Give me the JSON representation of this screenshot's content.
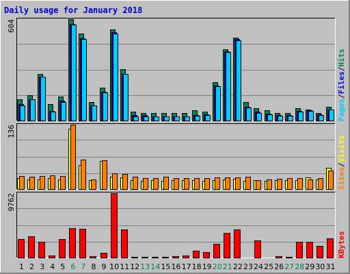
{
  "chart_data": {
    "type": "bar",
    "title": "Daily usage for January 2018",
    "categories": [
      "1",
      "2",
      "3",
      "4",
      "5",
      "6",
      "7",
      "8",
      "9",
      "10",
      "11",
      "12",
      "13",
      "14",
      "15",
      "16",
      "17",
      "18",
      "19",
      "20",
      "21",
      "22",
      "23",
      "24",
      "25",
      "26",
      "27",
      "28",
      "29",
      "30",
      "31"
    ],
    "weekend_days": [
      "6",
      "7",
      "13",
      "14",
      "20",
      "21",
      "27",
      "28"
    ],
    "panels": [
      {
        "id": "hits-files-pages",
        "max_label": "604",
        "ymax": 604,
        "legend": [
          {
            "name": "Pages",
            "color": "#00ccff"
          },
          {
            "name": "/",
            "color": "#000000"
          },
          {
            "name": "Files",
            "color": "#0000ff"
          },
          {
            "name": "/",
            "color": "#000000"
          },
          {
            "name": "Hits",
            "color": "#00805c"
          }
        ],
        "series": [
          {
            "name": "Hits",
            "color": "#00805c",
            "values": [
              130,
              155,
              280,
              100,
              145,
              604,
              520,
              115,
              200,
              545,
              310,
              55,
              50,
              48,
              50,
              48,
              48,
              65,
              55,
              230,
              425,
              495,
              115,
              78,
              65,
              48,
              48,
              78,
              70,
              50,
              85
            ]
          },
          {
            "name": "Files",
            "color": "#0000ff",
            "values": [
              100,
              130,
              265,
              60,
              120,
              575,
              490,
              95,
              175,
              525,
              280,
              35,
              35,
              30,
              30,
              30,
              30,
              35,
              40,
              210,
              415,
              485,
              85,
              55,
              45,
              35,
              35,
              60,
              65,
              40,
              70
            ]
          },
          {
            "name": "Pages",
            "color": "#00ccff",
            "values": [
              95,
              128,
              262,
              55,
              115,
              570,
              485,
              92,
              172,
              520,
              278,
              30,
              30,
              28,
              28,
              28,
              28,
              32,
              38,
              205,
              410,
              480,
              80,
              50,
              42,
              32,
              32,
              55,
              62,
              38,
              68
            ]
          }
        ]
      },
      {
        "id": "visits-sites",
        "max_label": "136",
        "ymax": 136,
        "legend": [
          {
            "name": "Sites",
            "color": "#ff8000"
          },
          {
            "name": "/",
            "color": "#000000"
          },
          {
            "name": "Visits",
            "color": "#ffff00"
          }
        ],
        "series": [
          {
            "name": "Visits",
            "color": "#ffff00",
            "values": [
              24,
              22,
              22,
              24,
              22,
              128,
              52,
              20,
              60,
              27,
              26,
              20,
              19,
              20,
              18,
              20,
              20,
              20,
              19,
              20,
              22,
              23,
              18,
              20,
              19,
              20,
              20,
              20,
              26,
              21,
              46
            ]
          },
          {
            "name": "Sites",
            "color": "#ff8000",
            "values": [
              29,
              27,
              28,
              30,
              28,
              136,
              63,
              21,
              62,
              34,
              33,
              27,
              25,
              25,
              27,
              25,
              25,
              25,
              25,
              26,
              26,
              26,
              27,
              20,
              22,
              23,
              25,
              25,
              21,
              24,
              40
            ]
          }
        ]
      },
      {
        "id": "kbytes",
        "max_label": "9762",
        "ymax": 9762,
        "legend": [
          {
            "name": "KBytes",
            "color": "#ff0000"
          }
        ],
        "series": [
          {
            "name": "KBytes",
            "color": "#ff0000",
            "values": [
              2900,
              3300,
              2500,
              450,
              2900,
              4500,
              4400,
              350,
              850,
              9762,
              4300,
              250,
              250,
              250,
              250,
              350,
              450,
              1100,
              900,
              2200,
              3800,
              4300,
              150,
              2700,
              150,
              350,
              250,
              2500,
              2500,
              1900,
              3000
            ]
          }
        ]
      }
    ]
  }
}
